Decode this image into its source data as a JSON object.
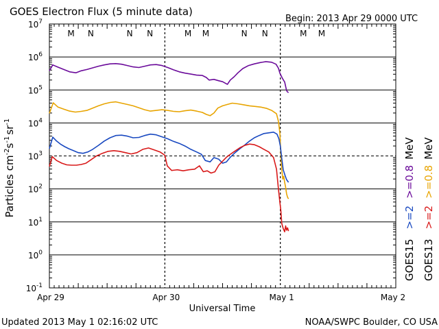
{
  "chart_data": {
    "type": "line",
    "title": "GOES Electron Flux (5 minute data)",
    "begin_label": "Begin: 2013 Apr 29 0000 UTC",
    "xlabel": "Universal Time",
    "ylabel_main": "Particles cm",
    "ylabel_parts": {
      "cm_exp": "-2",
      "s": "s",
      "s_exp": "-1",
      "sr": "sr",
      "sr_exp": "-1"
    },
    "x_unit": "hours since 2013 Apr 29 0000 UTC",
    "xlim": [
      0,
      72
    ],
    "x_ticks": [
      {
        "x": 0,
        "label": "Apr 29"
      },
      {
        "x": 24,
        "label": "Apr 30"
      },
      {
        "x": 48,
        "label": "May 1"
      },
      {
        "x": 72,
        "label": "May 2"
      }
    ],
    "y_scale": "log",
    "ylim_exp": [
      -1,
      7
    ],
    "y_ticks": [
      {
        "exp": 7,
        "base": "10",
        "sup": "7"
      },
      {
        "exp": 6,
        "base": "10",
        "sup": "6"
      },
      {
        "exp": 5,
        "base": "10",
        "sup": "5"
      },
      {
        "exp": 4,
        "base": "10",
        "sup": "4"
      },
      {
        "exp": 3,
        "base": "10",
        "sup": "3"
      },
      {
        "exp": 2,
        "base": "10",
        "sup": "2"
      },
      {
        "exp": 1,
        "base": "10",
        "sup": "1"
      },
      {
        "exp": 0,
        "base": "10",
        "sup": "0"
      },
      {
        "exp": -1,
        "base": "10",
        "sup": "-1"
      }
    ],
    "threshold": {
      "exp": 3,
      "style": "dashed"
    },
    "mn_markers": [
      {
        "x": 4.5,
        "label": "M",
        "color": "#d01818"
      },
      {
        "x": 8.6,
        "label": "N",
        "color": "#1430c0"
      },
      {
        "x": 16.7,
        "label": "N",
        "color": "#d01818"
      },
      {
        "x": 20.9,
        "label": "N",
        "color": "#1430c0"
      },
      {
        "x": 28.8,
        "label": "M",
        "color": "#d01818"
      },
      {
        "x": 32.5,
        "label": "M",
        "color": "#1430c0"
      },
      {
        "x": 40.5,
        "label": "N",
        "color": "#d01818"
      },
      {
        "x": 44.8,
        "label": "N",
        "color": "#1430c0"
      },
      {
        "x": 52.8,
        "label": "M",
        "color": "#d01818"
      },
      {
        "x": 56.6,
        "label": "M",
        "color": "#1430c0"
      }
    ],
    "series": [
      {
        "name": "GOES15 >=0.8 MeV",
        "color": "#6a0a9a",
        "points": [
          [
            0,
            5.58
          ],
          [
            0.7,
            5.76
          ],
          [
            1.8,
            5.69
          ],
          [
            3,
            5.62
          ],
          [
            4.2,
            5.55
          ],
          [
            5.5,
            5.52
          ],
          [
            6.6,
            5.58
          ],
          [
            7.8,
            5.62
          ],
          [
            9,
            5.67
          ],
          [
            10.2,
            5.72
          ],
          [
            11.4,
            5.76
          ],
          [
            12.6,
            5.79
          ],
          [
            13.8,
            5.8
          ],
          [
            15,
            5.78
          ],
          [
            16.2,
            5.74
          ],
          [
            17.4,
            5.7
          ],
          [
            18.6,
            5.68
          ],
          [
            19.8,
            5.72
          ],
          [
            21,
            5.76
          ],
          [
            22.2,
            5.77
          ],
          [
            23.4,
            5.74
          ],
          [
            24.6,
            5.68
          ],
          [
            25.8,
            5.61
          ],
          [
            27,
            5.55
          ],
          [
            28.2,
            5.51
          ],
          [
            29.4,
            5.48
          ],
          [
            30.6,
            5.45
          ],
          [
            31.8,
            5.44
          ],
          [
            32.6,
            5.38
          ],
          [
            33.2,
            5.3
          ],
          [
            34.2,
            5.32
          ],
          [
            35.2,
            5.28
          ],
          [
            36,
            5.25
          ],
          [
            37,
            5.17
          ],
          [
            37.6,
            5.3
          ],
          [
            38.4,
            5.4
          ],
          [
            39.2,
            5.52
          ],
          [
            40.2,
            5.65
          ],
          [
            41.4,
            5.74
          ],
          [
            42.6,
            5.79
          ],
          [
            43.8,
            5.83
          ],
          [
            45,
            5.86
          ],
          [
            46.2,
            5.84
          ],
          [
            47.1,
            5.78
          ],
          [
            47.6,
            5.66
          ],
          [
            47.9,
            5.51
          ],
          [
            48.4,
            5.36
          ],
          [
            48.9,
            5.24
          ],
          [
            49.3,
            4.98
          ],
          [
            49.5,
            4.94
          ],
          [
            49.7,
            4.92
          ]
        ]
      },
      {
        "name": "GOES13 >=0.8 MeV",
        "color": "#e8a400",
        "points": [
          [
            0,
            4.29
          ],
          [
            0.8,
            4.61
          ],
          [
            1.8,
            4.48
          ],
          [
            3,
            4.42
          ],
          [
            4.2,
            4.36
          ],
          [
            5.4,
            4.33
          ],
          [
            6.6,
            4.35
          ],
          [
            7.8,
            4.38
          ],
          [
            9,
            4.45
          ],
          [
            10.2,
            4.52
          ],
          [
            11.4,
            4.58
          ],
          [
            12.6,
            4.62
          ],
          [
            13.8,
            4.64
          ],
          [
            15,
            4.6
          ],
          [
            16.2,
            4.56
          ],
          [
            17.4,
            4.52
          ],
          [
            18.6,
            4.46
          ],
          [
            19.8,
            4.4
          ],
          [
            21,
            4.36
          ],
          [
            22.2,
            4.38
          ],
          [
            23.4,
            4.4
          ],
          [
            24.6,
            4.38
          ],
          [
            25.8,
            4.35
          ],
          [
            27,
            4.34
          ],
          [
            28.2,
            4.37
          ],
          [
            29.4,
            4.39
          ],
          [
            30.6,
            4.36
          ],
          [
            31.8,
            4.32
          ],
          [
            32.6,
            4.26
          ],
          [
            33.4,
            4.22
          ],
          [
            34.2,
            4.3
          ],
          [
            35,
            4.45
          ],
          [
            36,
            4.52
          ],
          [
            37,
            4.56
          ],
          [
            38,
            4.6
          ],
          [
            39.2,
            4.58
          ],
          [
            40.4,
            4.55
          ],
          [
            41.6,
            4.52
          ],
          [
            42.8,
            4.5
          ],
          [
            44,
            4.48
          ],
          [
            45.2,
            4.44
          ],
          [
            46.2,
            4.38
          ],
          [
            47.2,
            4.28
          ],
          [
            47.6,
            4.05
          ],
          [
            47.9,
            3.7
          ],
          [
            48.1,
            3.05
          ],
          [
            48.3,
            2.6
          ],
          [
            48.5,
            2.3
          ],
          [
            48.7,
            2.38
          ],
          [
            48.9,
            2.2
          ],
          [
            49.1,
            2.05
          ],
          [
            49.3,
            1.85
          ],
          [
            49.5,
            1.75
          ],
          [
            49.7,
            1.7
          ]
        ]
      },
      {
        "name": "GOES15 >=2 MeV",
        "color": "#1848c0",
        "points": [
          [
            0,
            3.22
          ],
          [
            0.7,
            3.57
          ],
          [
            1.5,
            3.45
          ],
          [
            2.4,
            3.35
          ],
          [
            3.2,
            3.28
          ],
          [
            4,
            3.22
          ],
          [
            5,
            3.16
          ],
          [
            6,
            3.1
          ],
          [
            7,
            3.08
          ],
          [
            8,
            3.12
          ],
          [
            9,
            3.2
          ],
          [
            10.2,
            3.32
          ],
          [
            11.4,
            3.45
          ],
          [
            12.6,
            3.55
          ],
          [
            13.8,
            3.62
          ],
          [
            15,
            3.63
          ],
          [
            16.2,
            3.6
          ],
          [
            17.4,
            3.55
          ],
          [
            18.6,
            3.56
          ],
          [
            19.8,
            3.62
          ],
          [
            21,
            3.66
          ],
          [
            22.2,
            3.64
          ],
          [
            23.4,
            3.58
          ],
          [
            24.6,
            3.52
          ],
          [
            25.8,
            3.44
          ],
          [
            27,
            3.38
          ],
          [
            28.2,
            3.3
          ],
          [
            29.4,
            3.2
          ],
          [
            30.6,
            3.12
          ],
          [
            31.6,
            3.05
          ],
          [
            32.4,
            2.86
          ],
          [
            33.4,
            2.82
          ],
          [
            34.2,
            2.95
          ],
          [
            35.2,
            2.9
          ],
          [
            36,
            2.78
          ],
          [
            36.8,
            2.82
          ],
          [
            37.6,
            2.96
          ],
          [
            38.6,
            3.1
          ],
          [
            39.6,
            3.22
          ],
          [
            40.6,
            3.33
          ],
          [
            41.6,
            3.45
          ],
          [
            42.6,
            3.55
          ],
          [
            43.6,
            3.62
          ],
          [
            44.6,
            3.68
          ],
          [
            45.6,
            3.7
          ],
          [
            46.6,
            3.72
          ],
          [
            47.3,
            3.66
          ],
          [
            47.7,
            3.52
          ],
          [
            48,
            3.3
          ],
          [
            48.3,
            2.92
          ],
          [
            48.6,
            2.58
          ],
          [
            49,
            2.4
          ],
          [
            49.3,
            2.28
          ],
          [
            49.7,
            2.2
          ]
        ]
      },
      {
        "name": "GOES13 >=2 MeV",
        "color": "#d81818",
        "points": [
          [
            0,
            2.68
          ],
          [
            0.6,
            2.98
          ],
          [
            1.5,
            2.86
          ],
          [
            2.6,
            2.78
          ],
          [
            3.6,
            2.73
          ],
          [
            4.6,
            2.72
          ],
          [
            5.6,
            2.72
          ],
          [
            6.6,
            2.74
          ],
          [
            7.6,
            2.78
          ],
          [
            8.6,
            2.88
          ],
          [
            9.8,
            3.0
          ],
          [
            11,
            3.08
          ],
          [
            12.2,
            3.14
          ],
          [
            13.4,
            3.16
          ],
          [
            14.6,
            3.14
          ],
          [
            15.8,
            3.1
          ],
          [
            17,
            3.06
          ],
          [
            18.2,
            3.1
          ],
          [
            19.4,
            3.2
          ],
          [
            20.6,
            3.24
          ],
          [
            21.8,
            3.18
          ],
          [
            23,
            3.12
          ],
          [
            24,
            3.02
          ],
          [
            24.5,
            2.7
          ],
          [
            25.4,
            2.56
          ],
          [
            26.6,
            2.58
          ],
          [
            27.8,
            2.55
          ],
          [
            29,
            2.58
          ],
          [
            30.2,
            2.6
          ],
          [
            31.2,
            2.7
          ],
          [
            32,
            2.52
          ],
          [
            32.8,
            2.55
          ],
          [
            33.6,
            2.48
          ],
          [
            34.4,
            2.52
          ],
          [
            35.2,
            2.72
          ],
          [
            36,
            2.84
          ],
          [
            36.8,
            2.96
          ],
          [
            37.6,
            3.05
          ],
          [
            38.6,
            3.15
          ],
          [
            39.6,
            3.25
          ],
          [
            40.6,
            3.32
          ],
          [
            41.6,
            3.36
          ],
          [
            42.6,
            3.34
          ],
          [
            43.6,
            3.28
          ],
          [
            44.6,
            3.2
          ],
          [
            45.6,
            3.12
          ],
          [
            46.6,
            2.95
          ],
          [
            47.2,
            2.6
          ],
          [
            47.6,
            2.0
          ],
          [
            47.9,
            1.6
          ],
          [
            48.1,
            1.35
          ],
          [
            48.3,
            0.95
          ],
          [
            48.6,
            0.8
          ],
          [
            48.9,
            0.7
          ],
          [
            49.1,
            0.88
          ],
          [
            49.3,
            0.75
          ],
          [
            49.5,
            0.82
          ],
          [
            49.7,
            0.72
          ]
        ]
      }
    ],
    "legend": {
      "side_labels": [
        {
          "text": "GOES15",
          "color": "#000000"
        },
        {
          "text": ">=2",
          "color": "#1848c0"
        },
        {
          "text": ">=0.8",
          "color": "#6a0a9a"
        },
        {
          "text": "MeV",
          "color": "#000000"
        },
        {
          "text": "GOES13",
          "color": "#000000"
        },
        {
          "text": ">=2",
          "color": "#d81818"
        },
        {
          "text": ">=0.8",
          "color": "#e8a400"
        },
        {
          "text": "MeV",
          "color": "#000000"
        }
      ]
    },
    "footer_left": "Updated 2013 May  1 02:16:02 UTC",
    "footer_right": "NOAA/SWPC Boulder, CO USA"
  }
}
